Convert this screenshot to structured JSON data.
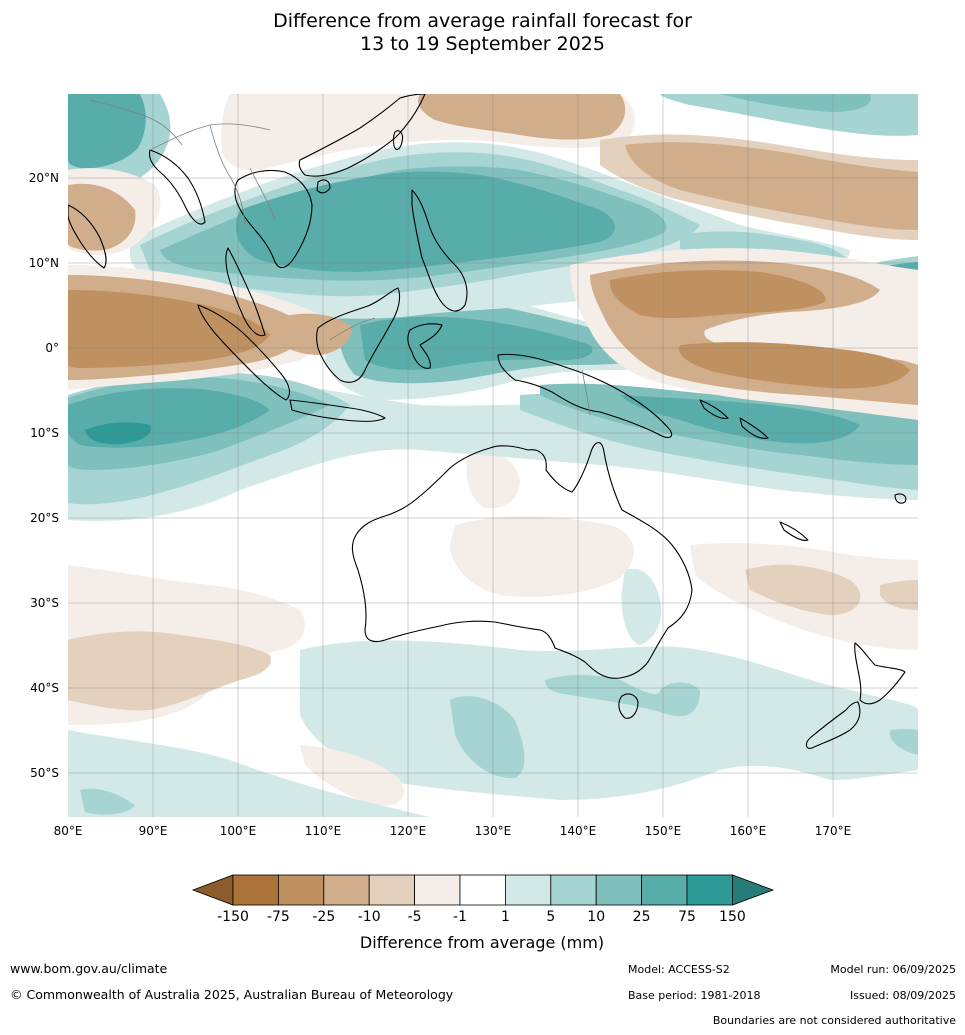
{
  "title": {
    "line1": "Difference from average rainfall forecast for",
    "line2": "13 to 19 September 2025"
  },
  "map": {
    "lon_ticks": [
      "80°E",
      "90°E",
      "100°E",
      "110°E",
      "120°E",
      "130°E",
      "140°E",
      "150°E",
      "160°E",
      "170°E"
    ],
    "lat_ticks": [
      "20°N",
      "10°N",
      "0°",
      "10°S",
      "20°S",
      "30°S",
      "40°S",
      "50°S"
    ]
  },
  "colorbar": {
    "title": "Difference from average (mm)",
    "labels": [
      "-150",
      "-75",
      "-25",
      "-10",
      "-5",
      "-1",
      "1",
      "5",
      "10",
      "25",
      "75",
      "150"
    ],
    "colors": [
      "#ab7338",
      "#bf9060",
      "#d1ae8b",
      "#e3d0bd",
      "#f5ede7",
      "#ffffff",
      "#d3e9e8",
      "#a6d4d2",
      "#7fc0bd",
      "#58adaa",
      "#2e9a96"
    ],
    "extend_low_color": "#8c5a2b",
    "extend_high_color": "#277b78"
  },
  "footer": {
    "website": "www.bom.gov.au/climate",
    "copyright": "© Commonwealth of Australia 2025, Australian Bureau of Meteorology",
    "model": "Model: ACCESS-S2",
    "base_period": "Base period: 1981-2018",
    "model_run": "Model run: 06/09/2025",
    "issued": "Issued: 08/09/2025",
    "disclaimer": "Boundaries are not considered authoritative"
  }
}
